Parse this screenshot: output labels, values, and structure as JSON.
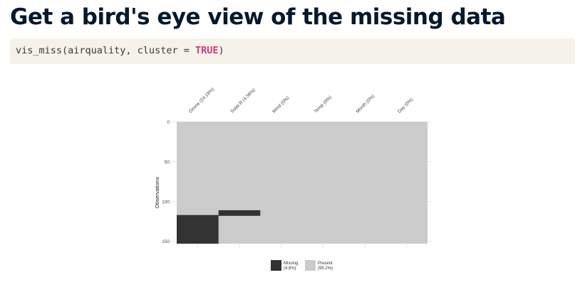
{
  "slide": {
    "title": "Get a bird's eye view of the missing data"
  },
  "code": {
    "fn": "vis_miss(airquality, cluster = ",
    "arg": "TRUE",
    "close": ")"
  },
  "chart_data": {
    "type": "heatmap",
    "title": "",
    "xlabel": "",
    "ylabel": "Observations",
    "x_tick_labels": [
      "Ozone (24.18%)",
      "Solar.R (4.58%)",
      "Wind (0%)",
      "Temp (0%)",
      "Month (0%)",
      "Day (0%)"
    ],
    "y_tick_labels": [
      "0",
      "50",
      "100",
      "150"
    ],
    "y_ticks": [
      0,
      50,
      100,
      150
    ],
    "ylim": [
      0,
      153
    ],
    "colors": {
      "missing": "#333333",
      "present": "#cbcbcb",
      "grid": "#e6e6e6"
    },
    "legend": {
      "placement": "bottom",
      "entries": [
        {
          "label": "Missing",
          "pct": "(4.8%)"
        },
        {
          "label": "Present",
          "pct": "(95.2%)"
        }
      ]
    },
    "missing_blocks": [
      {
        "column": 0,
        "from": 117,
        "to": 153
      },
      {
        "column": 1,
        "from": 111,
        "to": 118
      }
    ]
  }
}
